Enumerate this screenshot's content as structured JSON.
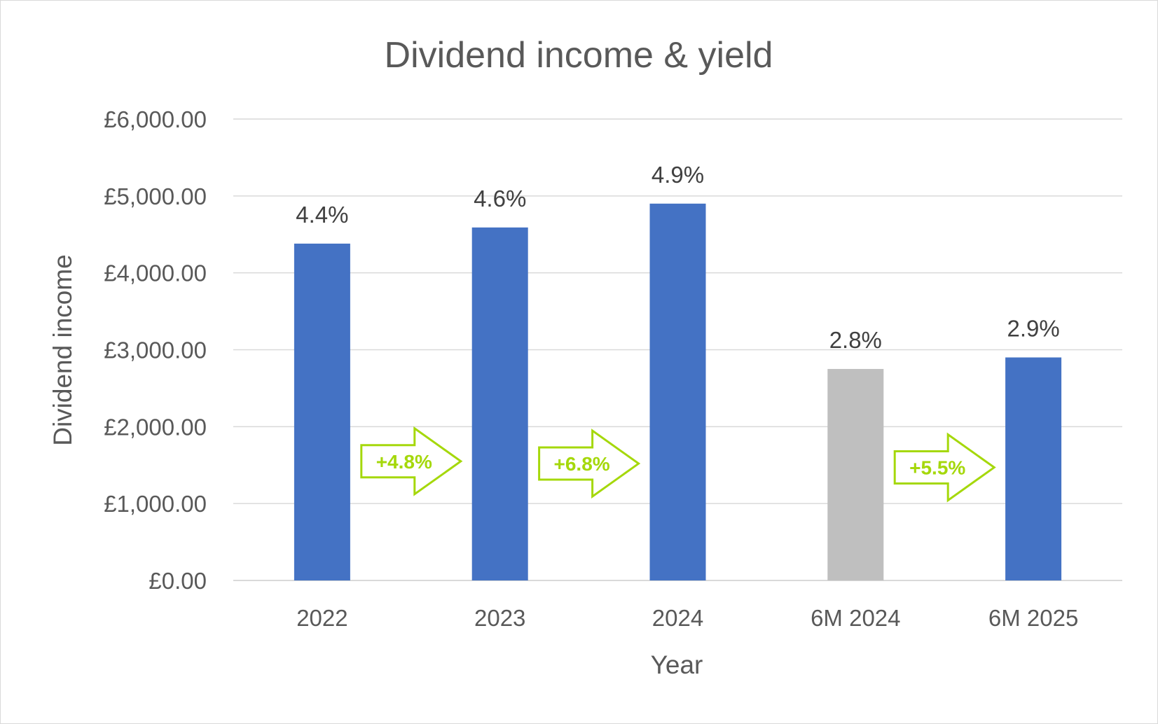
{
  "chart_data": {
    "type": "bar",
    "title": "Dividend income & yield",
    "xlabel": "Year",
    "ylabel": "Dividend income",
    "categories": [
      "2022",
      "2023",
      "2024",
      "6M 2024",
      "6M 2025"
    ],
    "values": [
      4380,
      4590,
      4900,
      2750,
      2900
    ],
    "data_labels": [
      "4.4%",
      "4.6%",
      "4.9%",
      "2.8%",
      "2.9%"
    ],
    "bar_colors": [
      "#4472c4",
      "#4472c4",
      "#4472c4",
      "#bfbfbf",
      "#4472c4"
    ],
    "ylim": [
      0,
      6000
    ],
    "yticks": [
      0,
      1000,
      2000,
      3000,
      4000,
      5000,
      6000
    ],
    "ytick_labels": [
      "£0.00",
      "£1,000.00",
      "£2,000.00",
      "£3,000.00",
      "£4,000.00",
      "£5,000.00",
      "£6,000.00"
    ],
    "grid": true,
    "annotations": [
      {
        "text": "+4.8%",
        "between": [
          "2022",
          "2023"
        ],
        "level": 1550
      },
      {
        "text": "+6.8%",
        "between": [
          "2023",
          "2024"
        ],
        "level": 1520
      },
      {
        "text": "+5.5%",
        "between": [
          "6M 2024",
          "6M 2025"
        ],
        "level": 1470
      }
    ],
    "annotation_color": "#a5d80b"
  }
}
